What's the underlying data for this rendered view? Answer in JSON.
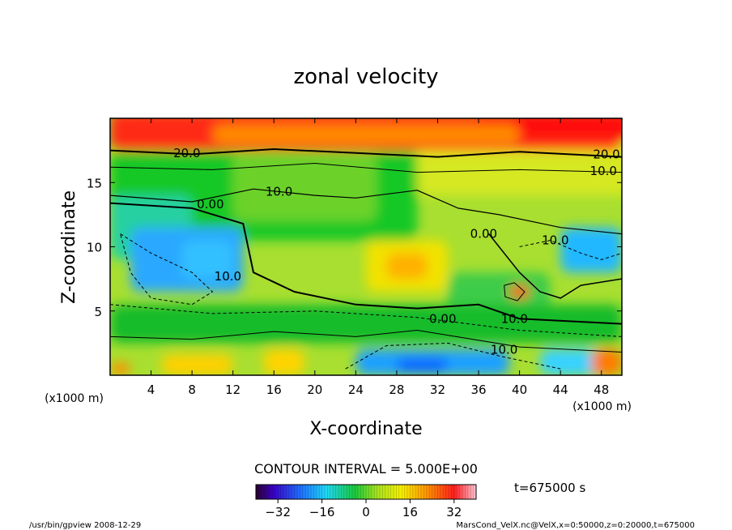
{
  "chart_data": {
    "type": "heatmap",
    "title": "zonal velocity",
    "xlabel": "X-coordinate",
    "ylabel": "Z-coordinate",
    "x_unit": "(x1000 m)",
    "z_unit": "(x1000 m)",
    "xlim": [
      0,
      50
    ],
    "ylim": [
      0,
      20
    ],
    "x_ticks": [
      4,
      8,
      12,
      16,
      20,
      24,
      28,
      32,
      36,
      40,
      44,
      48
    ],
    "x_tick_labels": [
      "4",
      "8",
      "12",
      "16",
      "20",
      "24",
      "28",
      "32",
      "36",
      "40",
      "44",
      "48"
    ],
    "y_ticks": [
      5,
      10,
      15
    ],
    "y_tick_labels": [
      "5",
      "10",
      "15"
    ],
    "contour_interval_text": "CONTOUR INTERVAL = 5.000E+00",
    "time_label": "t=675000 s",
    "colorbar": {
      "min": -40,
      "max": 40,
      "ticks": [
        -32,
        -16,
        0,
        16,
        32
      ],
      "tick_labels": [
        "−32",
        "−16",
        "0",
        "16",
        "32"
      ]
    },
    "contour_labels": [
      {
        "text": "20.0",
        "x": 7.5,
        "z": 17.3
      },
      {
        "text": "20.0",
        "x": 48.5,
        "z": 17.2
      },
      {
        "text": "10.0",
        "x": 48.2,
        "z": 15.9
      },
      {
        "text": "10.0",
        "x": 16.5,
        "z": 14.3
      },
      {
        "text": "0.00",
        "x": 9.8,
        "z": 13.3
      },
      {
        "text": "0.00",
        "x": 36.5,
        "z": 11.0
      },
      {
        "text": "10.0",
        "x": 43.5,
        "z": 10.5
      },
      {
        "text": "10.0",
        "x": 11.5,
        "z": 7.7
      },
      {
        "text": "0.00",
        "x": 32.5,
        "z": 4.4
      },
      {
        "text": "10.0",
        "x": 39.5,
        "z": 4.4
      },
      {
        "text": "10.0",
        "x": 38.5,
        "z": 2.0
      }
    ],
    "footer_left": "/usr/bin/gpview   2008-12-29",
    "footer_right": "MarsCond_VelX.nc@VelX,x=0:50000,z=0:20000,t=675000"
  }
}
